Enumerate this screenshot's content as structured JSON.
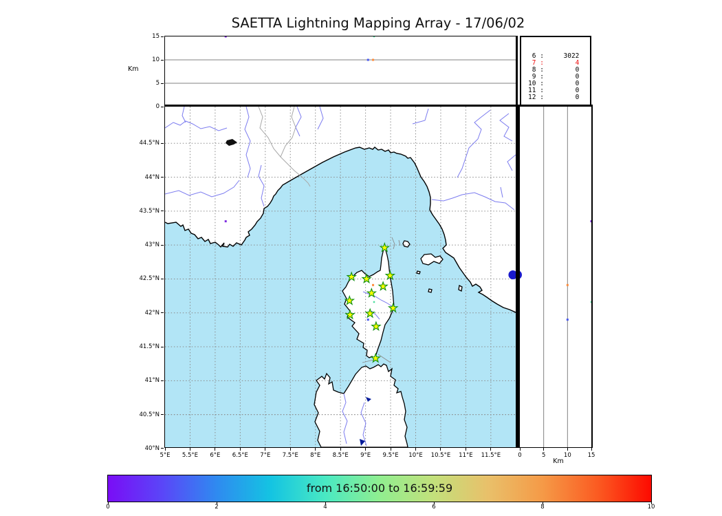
{
  "title": "SAETTA Lightning Mapping Array - 17/06/02",
  "colors": {
    "sea": "#b2e5f6",
    "land": "#ffffff",
    "coast": "#000000",
    "river": "#7b7bef",
    "admin_border": "#a8a8a8",
    "grid": "#8a8a8a",
    "panel_grid": "#808080",
    "star_fill": "#ffff00",
    "star_stroke": "#0f8f0f",
    "lake_dark": "#101010",
    "lake_navy": "#001a99",
    "count_highlight": "#ee1111"
  },
  "chart_data": [
    {
      "type": "scatter",
      "name": "altitude-vs-longitude-panel",
      "ylabel": "Km",
      "ylim": [
        0,
        15
      ],
      "yticks": [
        "15",
        "10",
        "5",
        "0"
      ],
      "ytick_values": [
        15,
        10,
        5,
        0
      ],
      "xlim": [
        5,
        12
      ],
      "grid": "horizontal solid at 5 and 10 km"
    },
    {
      "type": "table",
      "name": "sources-per-station-count",
      "rows": [
        {
          "station": "6",
          "count": "3022",
          "highlight": false
        },
        {
          "station": "7",
          "count": "4",
          "highlight": true
        },
        {
          "station": "8",
          "count": "0",
          "highlight": false
        },
        {
          "station": "9",
          "count": "0",
          "highlight": false
        },
        {
          "station": "10",
          "count": "0",
          "highlight": false
        },
        {
          "station": "11",
          "count": "0",
          "highlight": false
        },
        {
          "station": "12",
          "count": "0",
          "highlight": false
        }
      ]
    },
    {
      "type": "scatter",
      "name": "map-panel",
      "xlim": [
        5,
        12
      ],
      "ylim": [
        40,
        45.04
      ],
      "xtick_values": [
        5,
        5.5,
        6,
        6.5,
        7,
        7.5,
        8,
        8.5,
        9,
        9.5,
        10,
        10.5,
        11,
        11.5
      ],
      "xticks": [
        "5°E",
        "5.5°E",
        "6°E",
        "6.5°E",
        "7°E",
        "7.5°E",
        "8°E",
        "8.5°E",
        "9°E",
        "9.5°E",
        "10°E",
        "10.5°E",
        "11°E",
        "11.5°E"
      ],
      "ytick_values": [
        44.5,
        44,
        43.5,
        43,
        42.5,
        42,
        41.5,
        41,
        40.5,
        40
      ],
      "yticks": [
        "44.5°N",
        "44°N",
        "43.5°N",
        "43°N",
        "42.5°N",
        "42°N",
        "41.5°N",
        "41°N",
        "40.5°N",
        "40°N"
      ],
      "grid": "dotted 0.5 degree",
      "stations": [
        {
          "lon": 9.38,
          "lat": 42.96
        },
        {
          "lon": 8.72,
          "lat": 42.53
        },
        {
          "lon": 9.02,
          "lat": 42.5
        },
        {
          "lon": 9.49,
          "lat": 42.55
        },
        {
          "lon": 9.35,
          "lat": 42.39
        },
        {
          "lon": 9.12,
          "lat": 42.29
        },
        {
          "lon": 8.68,
          "lat": 42.18
        },
        {
          "lon": 9.55,
          "lat": 42.07
        },
        {
          "lon": 9.09,
          "lat": 41.99
        },
        {
          "lon": 8.69,
          "lat": 41.97
        },
        {
          "lon": 9.21,
          "lat": 41.8
        },
        {
          "lon": 9.2,
          "lat": 41.33
        }
      ],
      "sources": [
        {
          "lon": 6.21,
          "lat": 43.35,
          "alt_km": 15,
          "color": "#7d2be0",
          "size": 3
        },
        {
          "lon": 9.15,
          "lat": 42.41,
          "alt_km": 10,
          "color": "#ff8c3c",
          "size": 3
        },
        {
          "lon": 9.17,
          "lat": 42.16,
          "alt_km": 15,
          "color": "#50e0a0",
          "size": 2.5
        },
        {
          "lon": 9.05,
          "lat": 41.9,
          "alt_km": 10,
          "color": "#4858f0",
          "size": 3
        }
      ],
      "cluster": {
        "lon": 11.94,
        "lat": 42.56,
        "alt_km": 0,
        "color": "#1a1acc",
        "r": 6.5
      }
    },
    {
      "type": "scatter",
      "name": "altitude-vs-latitude-panel",
      "xlabel": "Km",
      "xlim": [
        0,
        15
      ],
      "xticks": [
        "0",
        "5",
        "10",
        "15"
      ],
      "xtick_values": [
        0,
        5,
        10,
        15
      ],
      "ylim": [
        40,
        45.04
      ],
      "grid": "vertical solid at 5 and 10 km"
    }
  ],
  "colorbar": {
    "label": "from 16:50:00 to 16:59:59",
    "ticks": [
      "0",
      "2",
      "4",
      "6",
      "8",
      "10"
    ],
    "tick_values": [
      0,
      2,
      4,
      6,
      8,
      10
    ],
    "range": [
      0,
      10
    ],
    "gradient": [
      "#7a0df6",
      "#5a46f8",
      "#2f8af0",
      "#14c4e2",
      "#49e9c3",
      "#90ee90",
      "#c3e07b",
      "#e9c06a",
      "#f59a47",
      "#fb5c22",
      "#fd0a00"
    ]
  },
  "axis_labels": {
    "top_y": "Km",
    "right_x": "Km"
  }
}
